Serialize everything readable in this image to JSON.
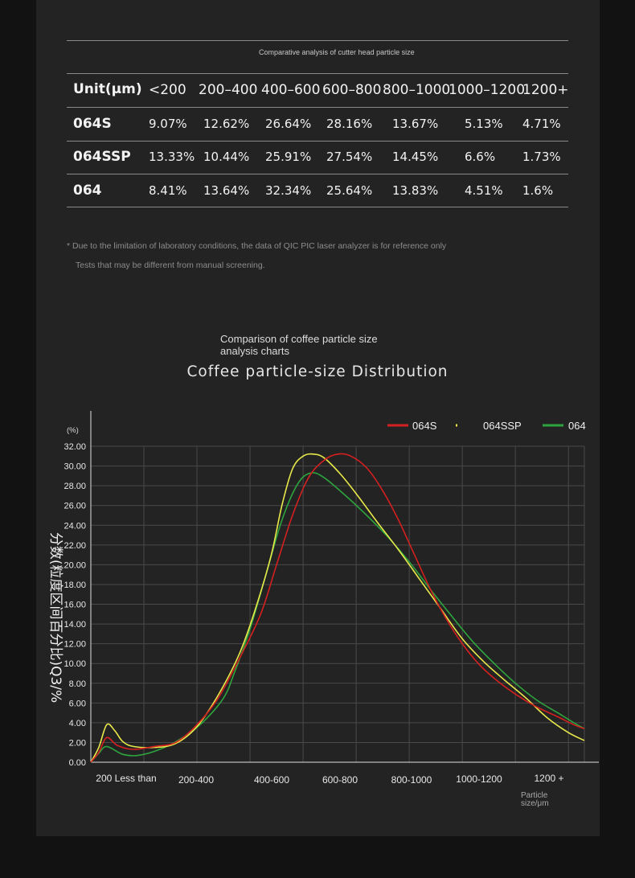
{
  "table": {
    "caption": "Comparative analysis of cutter head particle size",
    "headers": [
      "Unit(μm)",
      "<200",
      "200–400",
      "400–600",
      "600–800",
      "800–1000",
      "1000–1200",
      "1200+"
    ],
    "rows": [
      {
        "label": "064S",
        "values": [
          "9.07%",
          "12.62%",
          "26.64%",
          "28.16%",
          "13.67%",
          "5.13%",
          "4.71%"
        ]
      },
      {
        "label": "064SSP",
        "values": [
          "13.33%",
          "10.44%",
          "25.91%",
          "27.54%",
          "14.45%",
          "6.6%",
          "1.73%"
        ]
      },
      {
        "label": "064",
        "values": [
          "8.41%",
          "13.64%",
          "32.34%",
          "25.64%",
          "13.83%",
          "4.51%",
          "1.6%"
        ]
      }
    ]
  },
  "notes": {
    "line1": "* Due to the limitation of laboratory conditions, the data of QIC PIC laser analyzer is for reference only",
    "line2": "Tests that may be different from manual screening."
  },
  "chart_caption": "Comparison of coffee particle size analysis charts",
  "chart_data": {
    "type": "line",
    "title": "Coffee particle-size Distribution",
    "ylabel": "分数(粒度区间百分比)Q3/%",
    "yunit": "(%)",
    "xlabel": "Particle size/μm",
    "ylim": [
      0,
      32
    ],
    "yticks": [
      "0.00",
      "2.00",
      "4.00",
      "6.00",
      "8.00",
      "10.00",
      "12.00",
      "14.00",
      "16.00",
      "18.00",
      "20.00",
      "22.00",
      "24.00",
      "26.00",
      "28.00",
      "30.00",
      "32.00"
    ],
    "categories": [
      "200 Less than",
      "200-400",
      "400-600",
      "600-800",
      "800-1000",
      "1000-1200",
      "1200 +"
    ],
    "legend_position": "top-right",
    "grid": true,
    "series": [
      {
        "name": "064S",
        "color": "#d42020",
        "points": [
          [
            0,
            0
          ],
          [
            0.15,
            1
          ],
          [
            0.3,
            2.5
          ],
          [
            0.5,
            1.7
          ],
          [
            0.8,
            1.3
          ],
          [
            1.2,
            1.6
          ],
          [
            1.6,
            2
          ],
          [
            2,
            3.8
          ],
          [
            2.4,
            6.5
          ],
          [
            2.8,
            10.5
          ],
          [
            3.2,
            15
          ],
          [
            3.5,
            20
          ],
          [
            3.8,
            25
          ],
          [
            4.1,
            28.8
          ],
          [
            4.4,
            30.6
          ],
          [
            4.65,
            31.2
          ],
          [
            4.9,
            31
          ],
          [
            5.2,
            29.8
          ],
          [
            5.5,
            27.5
          ],
          [
            5.8,
            24.5
          ],
          [
            6.1,
            21
          ],
          [
            6.4,
            17.5
          ],
          [
            6.7,
            14.5
          ],
          [
            7,
            12
          ],
          [
            7.3,
            10
          ],
          [
            7.6,
            8.5
          ],
          [
            8,
            6.9
          ],
          [
            8.4,
            5.6
          ],
          [
            8.8,
            4.6
          ],
          [
            9.1,
            3.8
          ],
          [
            9.3,
            3.4
          ]
        ]
      },
      {
        "name": "064SSP",
        "color": "#e8e84a",
        "points": [
          [
            0,
            0
          ],
          [
            0.15,
            1.5
          ],
          [
            0.3,
            3.8
          ],
          [
            0.45,
            3.2
          ],
          [
            0.6,
            2.1
          ],
          [
            0.8,
            1.6
          ],
          [
            1.2,
            1.5
          ],
          [
            1.6,
            1.9
          ],
          [
            2,
            3.6
          ],
          [
            2.4,
            6.8
          ],
          [
            2.8,
            11
          ],
          [
            3.1,
            15.5
          ],
          [
            3.4,
            21
          ],
          [
            3.6,
            26
          ],
          [
            3.8,
            29.7
          ],
          [
            4,
            31
          ],
          [
            4.2,
            31.2
          ],
          [
            4.4,
            30.8
          ],
          [
            4.7,
            29.2
          ],
          [
            5,
            27.2
          ],
          [
            5.4,
            24.3
          ],
          [
            5.8,
            21.5
          ],
          [
            6.2,
            18.5
          ],
          [
            6.6,
            15.5
          ],
          [
            7,
            12.5
          ],
          [
            7.4,
            10.2
          ],
          [
            7.8,
            8.3
          ],
          [
            8.2,
            6.5
          ],
          [
            8.6,
            4.5
          ],
          [
            9,
            3
          ],
          [
            9.3,
            2.2
          ]
        ]
      },
      {
        "name": "064",
        "color": "#2ea43e",
        "points": [
          [
            0,
            0
          ],
          [
            0.15,
            0.9
          ],
          [
            0.3,
            1.6
          ],
          [
            0.6,
            0.8
          ],
          [
            0.9,
            0.7
          ],
          [
            1.3,
            1.3
          ],
          [
            1.7,
            2.4
          ],
          [
            2.1,
            4
          ],
          [
            2.5,
            6.5
          ],
          [
            2.7,
            9
          ],
          [
            3,
            13.5
          ],
          [
            3.3,
            19
          ],
          [
            3.6,
            24.5
          ],
          [
            3.9,
            28.2
          ],
          [
            4.15,
            29.3
          ],
          [
            4.4,
            28.8
          ],
          [
            4.8,
            27
          ],
          [
            5.2,
            25
          ],
          [
            5.6,
            22.8
          ],
          [
            6,
            20.3
          ],
          [
            6.4,
            17.5
          ],
          [
            6.8,
            14.8
          ],
          [
            7.2,
            12.2
          ],
          [
            7.6,
            10
          ],
          [
            8,
            8
          ],
          [
            8.4,
            6.3
          ],
          [
            8.8,
            5
          ],
          [
            9.1,
            4
          ],
          [
            9.3,
            3.4
          ]
        ]
      }
    ]
  }
}
